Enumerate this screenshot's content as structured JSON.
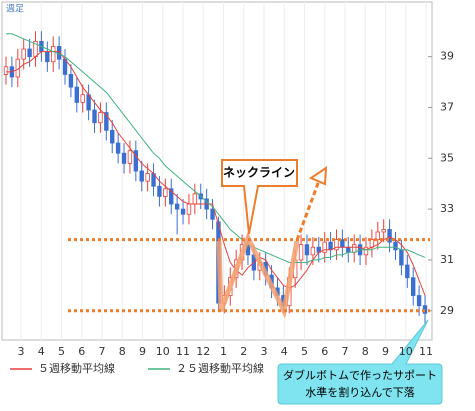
{
  "chart_data": {
    "type": "candlestick",
    "label": "週足",
    "series": {
      "open": [
        38.3,
        38.6,
        38.2,
        38.9,
        39.3,
        39.0,
        39.6,
        39.2,
        38.8,
        39.4,
        38.9,
        38.3,
        37.8,
        37.2,
        37.5,
        36.9,
        36.4,
        36.8,
        36.1,
        35.6,
        35.2,
        34.8,
        35.3,
        34.5,
        34.1,
        34.4,
        33.9,
        33.5,
        33.8,
        33.2,
        33.0,
        32.8,
        33.2,
        33.6,
        33.4,
        33.0,
        32.5,
        29.3,
        29.6,
        30.3,
        31.0,
        31.6,
        31.2,
        30.6,
        30.9,
        30.4,
        29.9,
        29.6,
        29.2,
        30.3,
        31.0,
        31.6,
        31.2,
        31.5,
        31.3,
        31.7,
        31.4,
        31.8,
        31.5,
        31.3,
        31.6,
        31.2,
        31.5,
        31.8,
        32.1,
        32.2,
        31.7,
        31.4,
        30.8,
        30.3,
        29.6,
        29.2
      ],
      "high": [
        39.0,
        39.0,
        39.3,
        39.7,
        39.7,
        40.0,
        40.0,
        39.6,
        39.8,
        39.8,
        39.3,
        38.7,
        38.2,
        37.9,
        37.9,
        37.3,
        37.2,
        37.2,
        36.5,
        36.0,
        35.6,
        35.7,
        35.7,
        34.9,
        34.8,
        34.8,
        34.3,
        34.2,
        34.2,
        33.6,
        33.4,
        33.6,
        34.0,
        34.0,
        33.8,
        33.4,
        32.7,
        30.0,
        30.7,
        31.4,
        32.0,
        32.0,
        31.6,
        31.3,
        31.3,
        30.8,
        30.3,
        30.0,
        30.7,
        31.4,
        32.0,
        32.0,
        31.9,
        31.9,
        32.1,
        32.1,
        32.2,
        32.2,
        31.9,
        32.0,
        32.0,
        31.9,
        32.2,
        32.5,
        32.6,
        32.6,
        32.1,
        31.8,
        31.2,
        30.7,
        30.0,
        29.6
      ],
      "low": [
        37.9,
        37.8,
        37.8,
        38.5,
        38.6,
        38.6,
        38.8,
        38.4,
        38.4,
        38.5,
        37.9,
        37.4,
        36.8,
        36.8,
        36.5,
        36.0,
        36.0,
        35.7,
        35.2,
        34.8,
        34.4,
        34.4,
        34.1,
        33.7,
        33.7,
        33.5,
        33.1,
        33.1,
        32.8,
        32.0,
        32.4,
        32.4,
        32.8,
        33.0,
        32.6,
        32.2,
        29.0,
        28.9,
        29.2,
        29.9,
        30.6,
        30.8,
        30.2,
        30.2,
        30.0,
        29.5,
        29.2,
        28.9,
        28.9,
        29.9,
        30.6,
        30.8,
        30.8,
        30.9,
        30.9,
        31.0,
        31.0,
        31.1,
        30.9,
        30.9,
        30.8,
        30.8,
        31.1,
        31.4,
        31.7,
        31.3,
        31.0,
        30.4,
        29.9,
        29.2,
        28.8,
        28.5
      ],
      "close": [
        38.6,
        38.2,
        38.9,
        39.3,
        39.0,
        39.6,
        39.2,
        38.8,
        39.4,
        38.9,
        38.3,
        37.8,
        37.2,
        37.5,
        36.9,
        36.4,
        36.8,
        36.1,
        35.6,
        35.2,
        34.8,
        35.3,
        34.5,
        34.1,
        34.4,
        33.9,
        33.5,
        33.8,
        33.2,
        33.0,
        32.8,
        33.2,
        33.6,
        33.4,
        33.0,
        32.6,
        29.3,
        29.6,
        30.3,
        31.0,
        31.6,
        31.2,
        30.6,
        30.9,
        30.4,
        29.9,
        29.6,
        29.2,
        30.3,
        31.0,
        31.6,
        31.2,
        31.5,
        31.3,
        31.7,
        31.4,
        31.8,
        31.5,
        31.3,
        31.6,
        31.2,
        31.5,
        31.8,
        32.1,
        32.2,
        31.7,
        31.4,
        30.8,
        30.3,
        29.6,
        29.2,
        28.9
      ]
    },
    "up_color": "#e8413b",
    "down_color": "#3b6fd0",
    "lines": [
      {
        "name": "５週移動平均線",
        "color": "#e8413b",
        "values": [
          38.4,
          38.4,
          38.5,
          38.7,
          38.8,
          39.0,
          39.2,
          39.2,
          39.2,
          39.2,
          38.9,
          38.6,
          38.2,
          37.8,
          37.5,
          37.2,
          36.9,
          36.7,
          36.4,
          36.0,
          35.7,
          35.4,
          35.1,
          34.8,
          34.6,
          34.4,
          34.1,
          33.9,
          33.7,
          33.5,
          33.3,
          33.2,
          33.2,
          33.2,
          33.2,
          33.2,
          32.4,
          31.6,
          30.9,
          30.6,
          30.4,
          30.7,
          30.9,
          31.1,
          31.0,
          30.6,
          30.3,
          30.0,
          29.9,
          30.0,
          30.3,
          30.6,
          31.0,
          31.3,
          31.4,
          31.4,
          31.5,
          31.5,
          31.5,
          31.5,
          31.5,
          31.4,
          31.5,
          31.6,
          31.8,
          31.9,
          31.8,
          31.6,
          31.3,
          30.8,
          30.2,
          29.6
        ]
      },
      {
        "name": "２５週移動平均線",
        "color": "#3fb27f",
        "values": [
          39.9,
          39.9,
          39.8,
          39.7,
          39.6,
          39.5,
          39.4,
          39.3,
          39.2,
          39.1,
          39.0,
          38.8,
          38.6,
          38.4,
          38.2,
          38.0,
          37.8,
          37.6,
          37.3,
          37.0,
          36.7,
          36.4,
          36.1,
          35.8,
          35.5,
          35.2,
          35.0,
          34.7,
          34.5,
          34.3,
          34.1,
          33.9,
          33.7,
          33.5,
          33.3,
          33.1,
          32.8,
          32.5,
          32.2,
          32.0,
          31.8,
          31.6,
          31.5,
          31.4,
          31.3,
          31.2,
          31.1,
          31.0,
          30.9,
          30.9,
          30.9,
          30.9,
          31.0,
          31.0,
          31.1,
          31.1,
          31.2,
          31.2,
          31.3,
          31.3,
          31.4,
          31.4,
          31.4,
          31.5,
          31.5,
          31.5,
          31.5,
          31.4,
          31.4,
          31.3,
          31.2,
          31.1
        ]
      }
    ],
    "ylim": [
      27.85,
      41.15
    ],
    "yticks": [
      29,
      31,
      33,
      35,
      37,
      39
    ],
    "xtick_labels": [
      "3",
      "4",
      "5",
      "6",
      "7",
      "8",
      "9",
      "10",
      "11",
      "12",
      "1",
      "2",
      "3",
      "4",
      "5",
      "6",
      "7",
      "8",
      "9",
      "10",
      "11"
    ],
    "levels": [
      31.8,
      29
    ],
    "level_color": "#ee7d2b",
    "annotations": [
      "ネックライン",
      "ダブルボトムで作ったサポート",
      "水準を割り込んで下落"
    ]
  }
}
